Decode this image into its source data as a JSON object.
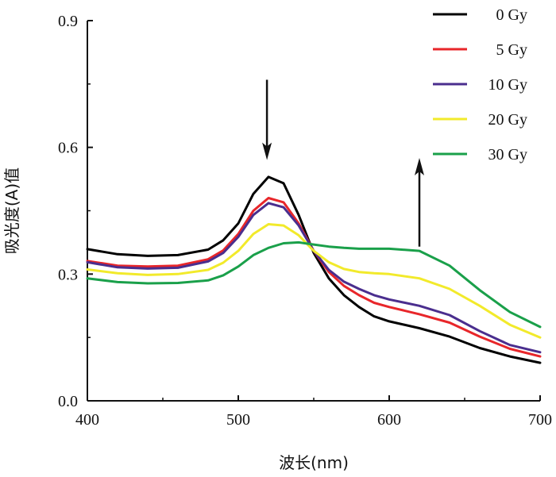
{
  "chart_data": {
    "type": "line",
    "xlabel": "波长(nm)",
    "ylabel": "吸光度(A)值",
    "xlim": [
      400,
      700
    ],
    "ylim": [
      0,
      0.9
    ],
    "xticks": [
      "400",
      "500",
      "600",
      "700"
    ],
    "yticks": [
      "0.0",
      "0.3",
      "0.6",
      "0.9"
    ],
    "grid": false,
    "legend_position": "top-right",
    "series": [
      {
        "name": "0 Gy",
        "color": "#000000",
        "points": [
          [
            400,
            0.359
          ],
          [
            420,
            0.347
          ],
          [
            440,
            0.343
          ],
          [
            460,
            0.345
          ],
          [
            480,
            0.358
          ],
          [
            490,
            0.38
          ],
          [
            500,
            0.42
          ],
          [
            510,
            0.49
          ],
          [
            520,
            0.53
          ],
          [
            530,
            0.515
          ],
          [
            540,
            0.44
          ],
          [
            550,
            0.35
          ],
          [
            560,
            0.29
          ],
          [
            570,
            0.25
          ],
          [
            580,
            0.222
          ],
          [
            590,
            0.2
          ],
          [
            600,
            0.188
          ],
          [
            620,
            0.172
          ],
          [
            640,
            0.152
          ],
          [
            660,
            0.125
          ],
          [
            680,
            0.105
          ],
          [
            700,
            0.09
          ]
        ]
      },
      {
        "name": "5 Gy",
        "color": "#e8262a",
        "points": [
          [
            400,
            0.331
          ],
          [
            420,
            0.32
          ],
          [
            440,
            0.318
          ],
          [
            460,
            0.32
          ],
          [
            480,
            0.335
          ],
          [
            490,
            0.356
          ],
          [
            500,
            0.395
          ],
          [
            510,
            0.45
          ],
          [
            520,
            0.48
          ],
          [
            530,
            0.47
          ],
          [
            540,
            0.42
          ],
          [
            550,
            0.355
          ],
          [
            560,
            0.305
          ],
          [
            570,
            0.272
          ],
          [
            580,
            0.25
          ],
          [
            590,
            0.232
          ],
          [
            600,
            0.222
          ],
          [
            620,
            0.205
          ],
          [
            640,
            0.185
          ],
          [
            660,
            0.152
          ],
          [
            680,
            0.123
          ],
          [
            700,
            0.105
          ]
        ]
      },
      {
        "name": "10 Gy",
        "color": "#4a2e8e",
        "points": [
          [
            400,
            0.328
          ],
          [
            420,
            0.316
          ],
          [
            440,
            0.313
          ],
          [
            460,
            0.315
          ],
          [
            480,
            0.33
          ],
          [
            490,
            0.35
          ],
          [
            500,
            0.388
          ],
          [
            510,
            0.44
          ],
          [
            520,
            0.468
          ],
          [
            530,
            0.458
          ],
          [
            540,
            0.415
          ],
          [
            550,
            0.355
          ],
          [
            560,
            0.31
          ],
          [
            570,
            0.282
          ],
          [
            580,
            0.265
          ],
          [
            590,
            0.25
          ],
          [
            600,
            0.24
          ],
          [
            620,
            0.225
          ],
          [
            640,
            0.203
          ],
          [
            660,
            0.165
          ],
          [
            680,
            0.132
          ],
          [
            700,
            0.115
          ]
        ]
      },
      {
        "name": "20 Gy",
        "color": "#f2ea2b",
        "points": [
          [
            400,
            0.311
          ],
          [
            420,
            0.302
          ],
          [
            440,
            0.298
          ],
          [
            460,
            0.3
          ],
          [
            480,
            0.31
          ],
          [
            490,
            0.327
          ],
          [
            500,
            0.355
          ],
          [
            510,
            0.395
          ],
          [
            520,
            0.418
          ],
          [
            530,
            0.415
          ],
          [
            540,
            0.392
          ],
          [
            550,
            0.355
          ],
          [
            560,
            0.328
          ],
          [
            570,
            0.312
          ],
          [
            580,
            0.305
          ],
          [
            590,
            0.302
          ],
          [
            600,
            0.3
          ],
          [
            620,
            0.29
          ],
          [
            640,
            0.265
          ],
          [
            660,
            0.225
          ],
          [
            680,
            0.18
          ],
          [
            700,
            0.15
          ]
        ]
      },
      {
        "name": "30 Gy",
        "color": "#1aa04a",
        "points": [
          [
            400,
            0.29
          ],
          [
            420,
            0.281
          ],
          [
            440,
            0.278
          ],
          [
            460,
            0.279
          ],
          [
            480,
            0.285
          ],
          [
            490,
            0.297
          ],
          [
            500,
            0.318
          ],
          [
            510,
            0.345
          ],
          [
            520,
            0.362
          ],
          [
            530,
            0.373
          ],
          [
            540,
            0.375
          ],
          [
            550,
            0.37
          ],
          [
            560,
            0.365
          ],
          [
            570,
            0.362
          ],
          [
            580,
            0.36
          ],
          [
            590,
            0.36
          ],
          [
            600,
            0.36
          ],
          [
            620,
            0.355
          ],
          [
            640,
            0.32
          ],
          [
            660,
            0.262
          ],
          [
            680,
            0.21
          ],
          [
            700,
            0.175
          ]
        ]
      }
    ],
    "annotations": [
      {
        "type": "arrow",
        "direction": "down",
        "x": 519,
        "y_from": 0.76,
        "y_to": 0.57
      },
      {
        "type": "arrow",
        "direction": "up",
        "x": 620,
        "y_from": 0.365,
        "y_to": 0.575
      }
    ]
  }
}
